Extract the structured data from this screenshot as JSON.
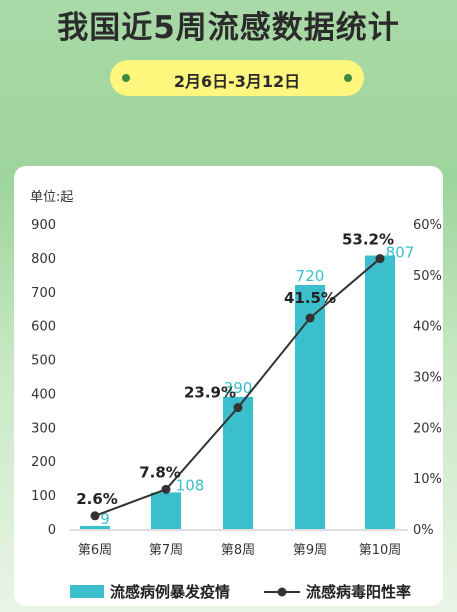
{
  "header": {
    "title": "我国近5周流感数据统计",
    "date_range": "2月6日-3月12日"
  },
  "colors": {
    "bar": "#3cbfcc",
    "line": "#333333",
    "bar_label": "#3cbfcc",
    "accent_pill": "#fff67e"
  },
  "chart_data": {
    "type": "bar",
    "unit_label": "单位:起",
    "categories": [
      "第6周",
      "第7周",
      "第8周",
      "第9周",
      "第10周"
    ],
    "series": [
      {
        "name": "流感病例暴发疫情",
        "type": "bar",
        "axis": "left",
        "values": [
          9,
          108,
          390,
          720,
          807
        ]
      },
      {
        "name": "流感病毒阳性率",
        "type": "line",
        "axis": "right",
        "values": [
          2.6,
          7.8,
          23.9,
          41.5,
          53.2
        ]
      }
    ],
    "left_axis": {
      "range": [
        0,
        900
      ],
      "ticks": [
        0,
        100,
        200,
        300,
        400,
        500,
        600,
        700,
        800,
        900
      ]
    },
    "right_axis": {
      "range": [
        0,
        60
      ],
      "ticks": [
        0,
        10,
        20,
        30,
        40,
        50,
        60
      ],
      "suffix": "%"
    },
    "legend_position": "bottom",
    "grid": false
  }
}
